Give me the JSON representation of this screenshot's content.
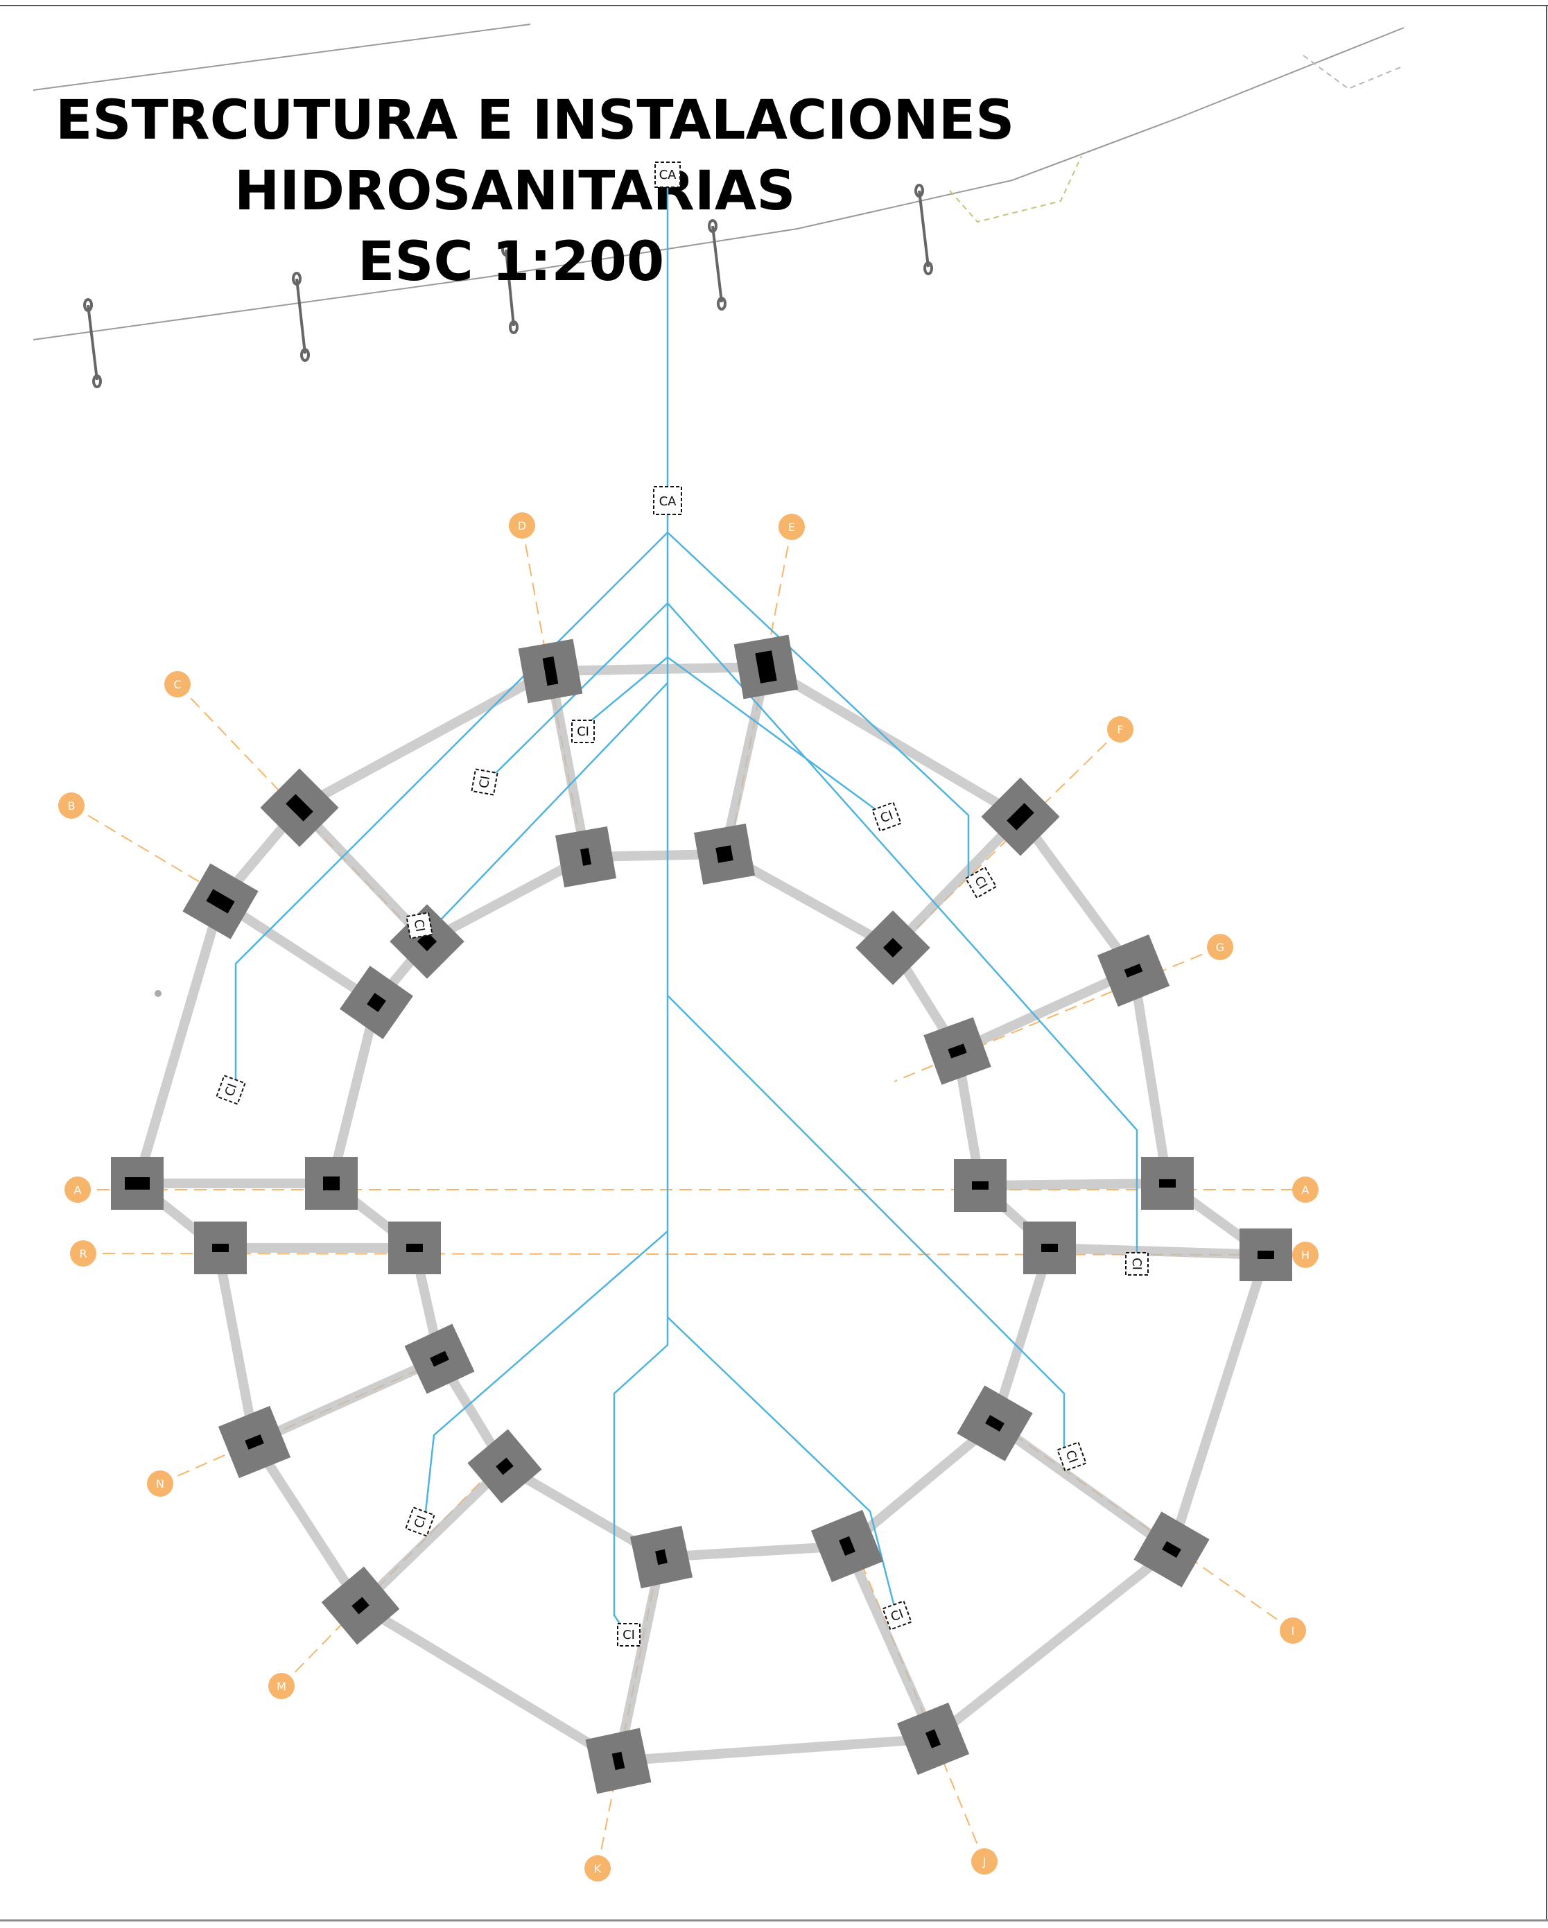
{
  "title": {
    "line1": "ESTRCUTURA E INSTALACIONES",
    "line2": "HIDROSANITARIAS",
    "line3": "ESC 1:200"
  },
  "colors": {
    "column": "#7a7a7a",
    "column_core": "#000000",
    "beam": "#bdbdbd",
    "pipe": "#4fb3df",
    "axis": "#f6b56a",
    "terrain": "#9a9a9a"
  },
  "axis_labels": [
    "A",
    "B",
    "C",
    "D",
    "E",
    "F",
    "G",
    "A",
    "H",
    "I",
    "J",
    "K",
    "M",
    "N",
    "R"
  ],
  "boxes": {
    "main": "CA",
    "inspection": "CI"
  }
}
